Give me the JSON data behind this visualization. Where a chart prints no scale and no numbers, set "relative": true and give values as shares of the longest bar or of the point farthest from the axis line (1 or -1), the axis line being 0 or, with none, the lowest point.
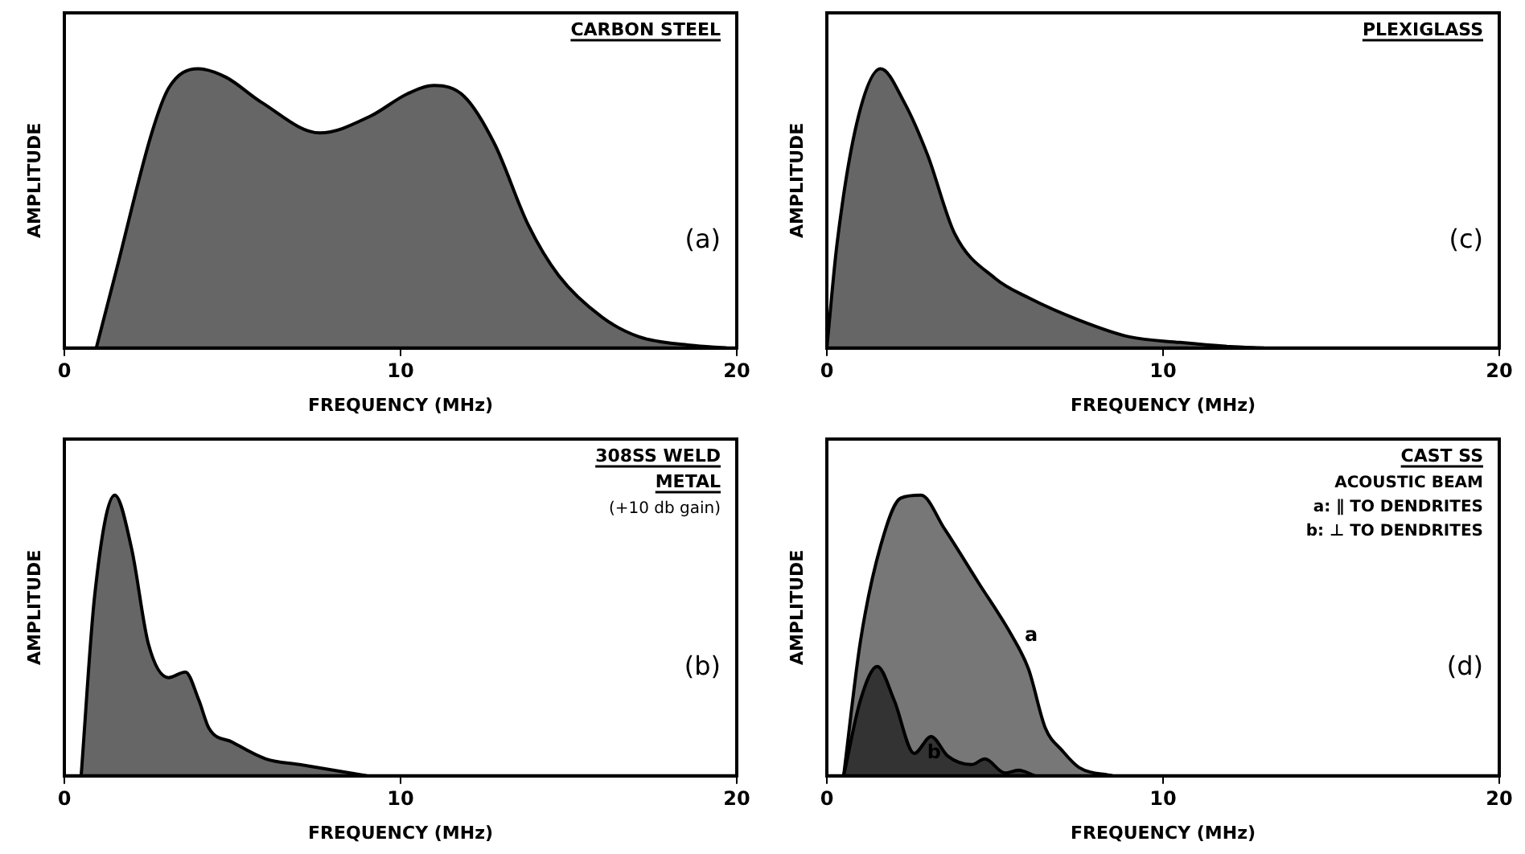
{
  "chart_data": [
    {
      "type": "area",
      "relative": true,
      "title": "CARBON STEEL",
      "xlabel": "FREQUENCY (MHz)",
      "ylabel": "AMPLITUDE",
      "xlim": [
        0,
        20
      ],
      "xticks": [
        0,
        10,
        20
      ],
      "grid": false,
      "legend": false,
      "annotations": [
        "(a)"
      ],
      "series": [
        {
          "color": "#666666",
          "x": [
            0.95,
            1.55,
            2.6,
            3.1,
            3.97,
            4.8,
            5.86,
            7.6,
            9.1,
            10.2,
            11.0,
            11.9,
            12.8,
            13.8,
            14.7,
            16.0,
            17.1,
            18.6,
            19.7
          ],
          "values": [
            0,
            0.28,
            0.77,
            0.93,
            1.0,
            0.97,
            0.88,
            0.77,
            0.83,
            0.91,
            0.94,
            0.9,
            0.73,
            0.44,
            0.26,
            0.11,
            0.04,
            0.01,
            0
          ]
        }
      ]
    },
    {
      "type": "area",
      "relative": true,
      "title": "PLEXIGLASS",
      "xlabel": "FREQUENCY (MHz)",
      "ylabel": "AMPLITUDE",
      "xlim": [
        0,
        20
      ],
      "xticks": [
        0,
        10,
        20
      ],
      "grid": false,
      "legend": false,
      "annotations": [
        "(c)"
      ],
      "series": [
        {
          "color": "#666666",
          "x": [
            0,
            0.3,
            0.9,
            1.6,
            2.3,
            3.0,
            3.8,
            5.0,
            6.0,
            7.5,
            9.0,
            10.5,
            12.0,
            13.0
          ],
          "values": [
            0,
            0.37,
            0.81,
            1.0,
            0.88,
            0.69,
            0.41,
            0.25,
            0.18,
            0.1,
            0.04,
            0.02,
            0.005,
            0
          ]
        }
      ]
    },
    {
      "type": "area",
      "relative": true,
      "title": "308SS WELD METAL",
      "xlabel": "FREQUENCY (MHz)",
      "ylabel": "AMPLITUDE",
      "xlim": [
        0,
        20
      ],
      "xticks": [
        0,
        10,
        20
      ],
      "grid": false,
      "legend": false,
      "annotations": [
        "(+10 db gain)",
        "(b)"
      ],
      "series": [
        {
          "color": "#666666",
          "x": [
            0.5,
            0.9,
            1.5,
            2.0,
            2.5,
            3.1,
            3.6,
            4.0,
            4.3,
            5.0,
            6.0,
            7.0,
            8.0,
            9.0
          ],
          "values": [
            0,
            0.64,
            1.0,
            0.81,
            0.47,
            0.35,
            0.37,
            0.27,
            0.17,
            0.12,
            0.06,
            0.04,
            0.02,
            0
          ]
        }
      ]
    },
    {
      "type": "area",
      "relative": true,
      "title": "CAST SS",
      "xlabel": "FREQUENCY (MHz)",
      "ylabel": "AMPLITUDE",
      "xlim": [
        0,
        20
      ],
      "xticks": [
        0,
        10,
        20
      ],
      "grid": false,
      "legend": false,
      "annotations": [
        "ACOUSTIC BEAM",
        "a: ∥ TO DENDRITES",
        "b: ⊥ TO DENDRITES",
        "(d)"
      ],
      "series": [
        {
          "name": "a",
          "color": "#777777",
          "x": [
            0.5,
            1.0,
            1.6,
            2.2,
            2.8,
            3.5,
            4.5,
            5.5,
            6.0,
            6.5,
            7.0,
            7.5,
            8.5
          ],
          "values": [
            0,
            0.48,
            0.82,
            0.99,
            1.0,
            0.88,
            0.69,
            0.5,
            0.38,
            0.17,
            0.09,
            0.03,
            0
          ]
        },
        {
          "name": "b",
          "color": "#333333",
          "x": [
            0.5,
            1.0,
            1.5,
            2.0,
            2.6,
            3.1,
            3.6,
            4.3,
            4.7,
            5.3,
            5.7,
            6.2
          ],
          "values": [
            0,
            0.27,
            0.39,
            0.27,
            0.08,
            0.14,
            0.07,
            0.04,
            0.06,
            0.01,
            0.02,
            0
          ]
        }
      ]
    }
  ]
}
